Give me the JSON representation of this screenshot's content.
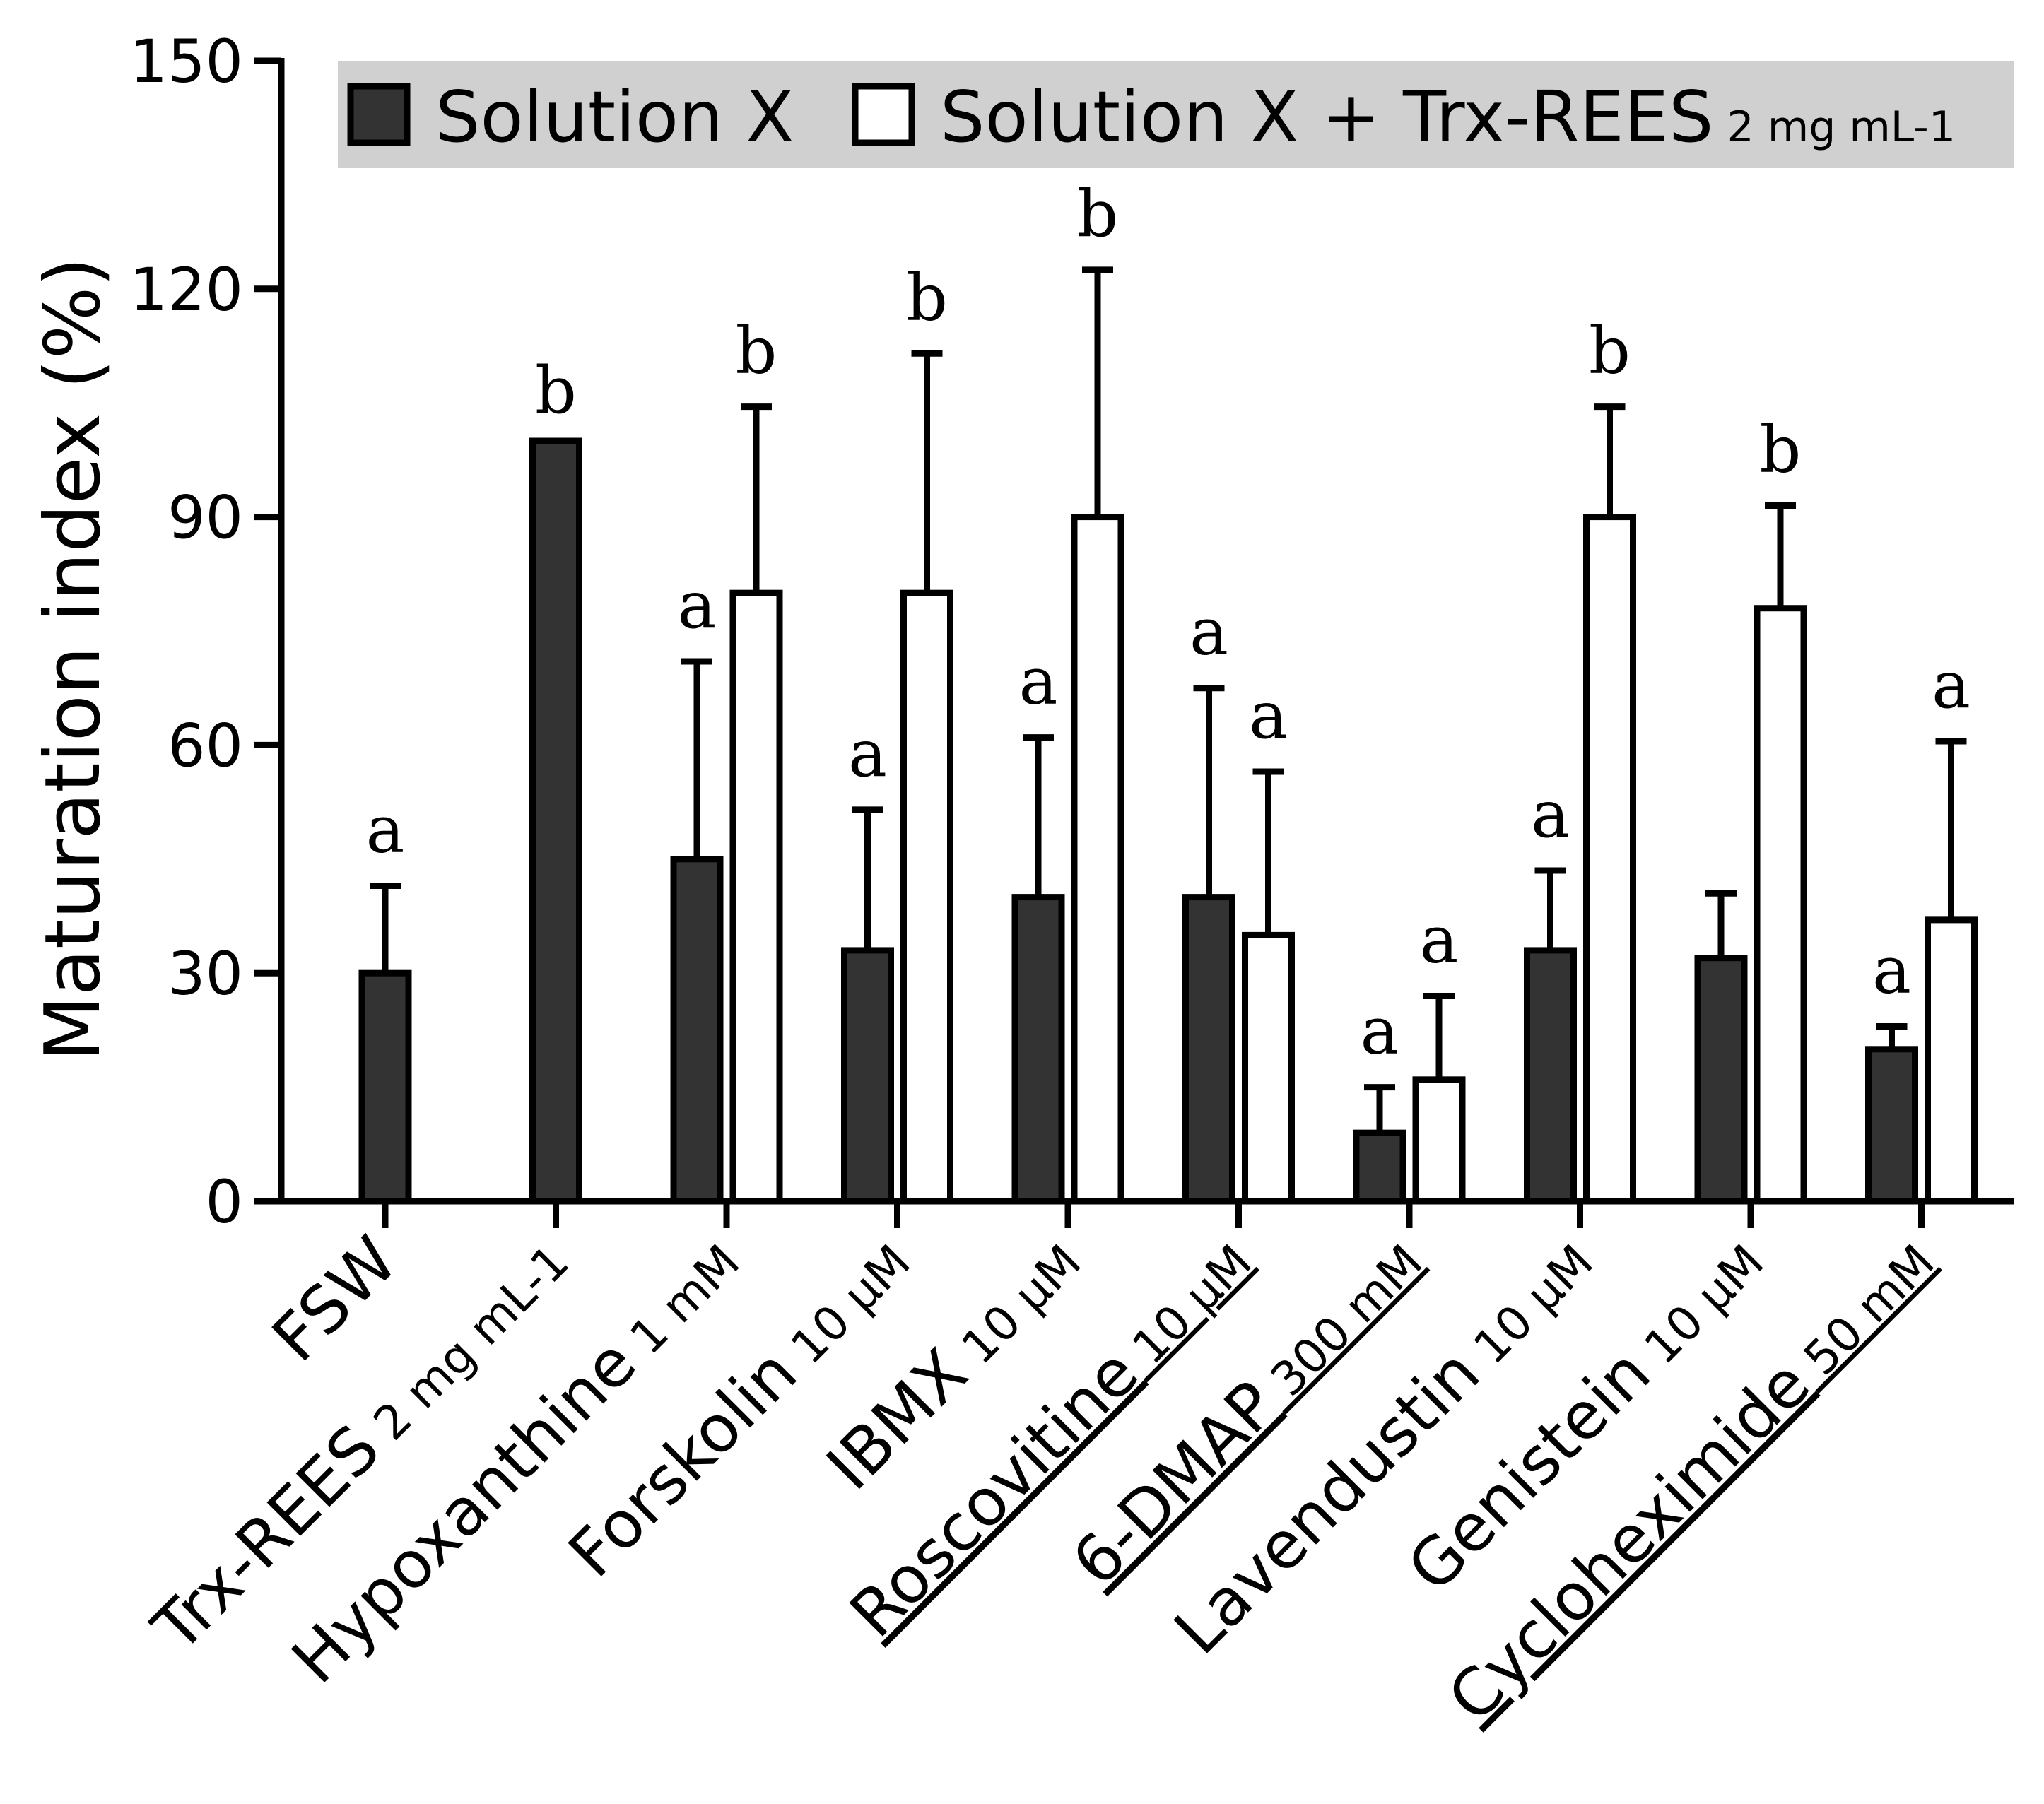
{
  "chart_data": {
    "type": "bar",
    "title": "",
    "xlabel": "",
    "ylabel": "Maturation index (%)",
    "ylim": [
      0,
      150
    ],
    "yticks": [
      0,
      30,
      60,
      90,
      120,
      150
    ],
    "grid": false,
    "legend_position": "top",
    "legend_color": "#d0d0d0",
    "categories": [
      {
        "name": "FSW",
        "unit": "",
        "underline": false
      },
      {
        "name": "Trx-REES",
        "unit": "2 mg mL-1",
        "underline": false
      },
      {
        "name": "Hypoxanthine",
        "unit": "1 mM",
        "underline": false
      },
      {
        "name": "Forskolin",
        "unit": "10 µM",
        "underline": false
      },
      {
        "name": "IBMX",
        "unit": "10 µM",
        "underline": false
      },
      {
        "name": "Roscovitine",
        "unit": "10 µM",
        "underline": true
      },
      {
        "name": "6-DMAP",
        "unit": "300 mM",
        "underline": true
      },
      {
        "name": "Lavendustin",
        "unit": "10 µM",
        "underline": false
      },
      {
        "name": "Genistein",
        "unit": "10 µM",
        "underline": false
      },
      {
        "name": "Cycloheximide",
        "unit": "50 mM",
        "underline": true
      }
    ],
    "series": [
      {
        "name": "Solution X",
        "color": "#333333",
        "values": [
          30,
          100,
          45,
          33,
          40,
          40,
          9,
          33,
          32,
          20
        ],
        "errors": [
          11.5,
          0,
          26,
          18.5,
          21,
          27.5,
          6,
          10.5,
          8.5,
          3
        ],
        "letters": [
          "a",
          "b",
          "a",
          "a",
          "a",
          "a",
          "a",
          "a",
          "",
          "a"
        ]
      },
      {
        "name": "Solution X + Trx-REES",
        "name_suffix": "2 mg mL-1",
        "color": "#ffffff",
        "values": [
          null,
          null,
          80,
          80,
          90,
          35,
          16,
          90,
          78,
          37
        ],
        "errors": [
          null,
          null,
          24.5,
          31.5,
          32.5,
          21.5,
          11,
          14.5,
          13.5,
          23.5
        ],
        "letters": [
          "",
          "",
          "b",
          "b",
          "b",
          "a",
          "a",
          "b",
          "b",
          "a"
        ]
      }
    ]
  }
}
